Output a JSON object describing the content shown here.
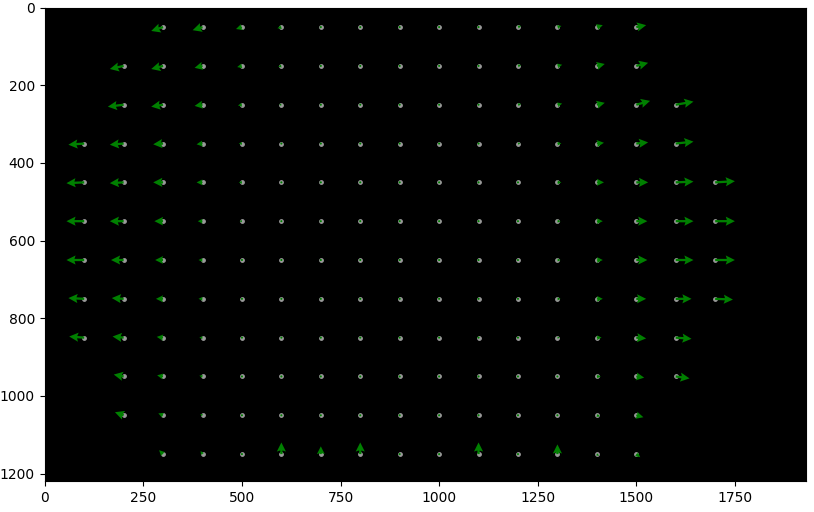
{
  "chart_data": {
    "type": "quiver",
    "color": "#008000",
    "grid": false,
    "xlim": [
      0,
      1930
    ],
    "ylim": [
      1220,
      0
    ],
    "xticks": [
      0,
      250,
      500,
      750,
      1000,
      1250,
      1500,
      1750
    ],
    "yticks": [
      0,
      200,
      400,
      600,
      800,
      1000,
      1200
    ],
    "x": [
      100,
      200,
      300,
      400,
      500,
      600,
      700,
      800,
      900,
      1000,
      1100,
      1200,
      1300,
      1400,
      1500,
      1600,
      1700
    ],
    "y": [
      50,
      150,
      250,
      350,
      450,
      550,
      650,
      750,
      850,
      950,
      1050,
      1150
    ],
    "u": [
      [
        null,
        null,
        -30,
        -25,
        -15,
        -10,
        -5,
        -3,
        0,
        3,
        5,
        8,
        10,
        15,
        25,
        null,
        null
      ],
      [
        null,
        -35,
        -30,
        -20,
        -12,
        -8,
        -5,
        -2,
        0,
        2,
        5,
        8,
        12,
        20,
        30,
        null,
        null
      ],
      [
        null,
        -40,
        -30,
        -20,
        -10,
        -6,
        -3,
        -2,
        0,
        2,
        4,
        8,
        12,
        20,
        35,
        45,
        null
      ],
      [
        -40,
        -35,
        -25,
        -15,
        -8,
        -5,
        -2,
        0,
        0,
        2,
        4,
        6,
        10,
        18,
        30,
        45,
        null
      ],
      [
        -45,
        -35,
        -25,
        -15,
        -8,
        -4,
        -2,
        0,
        0,
        2,
        3,
        5,
        10,
        18,
        30,
        45,
        50
      ],
      [
        -45,
        -35,
        -22,
        -12,
        -6,
        -3,
        -1,
        0,
        0,
        1,
        3,
        5,
        8,
        15,
        28,
        45,
        50
      ],
      [
        -45,
        -32,
        -20,
        -10,
        -5,
        -2,
        0,
        0,
        0,
        0,
        2,
        4,
        8,
        15,
        28,
        45,
        50
      ],
      [
        -40,
        -30,
        -18,
        -10,
        -5,
        -2,
        0,
        0,
        0,
        0,
        2,
        4,
        8,
        15,
        25,
        40,
        45
      ],
      [
        -38,
        -28,
        -16,
        -8,
        -4,
        -2,
        0,
        0,
        0,
        0,
        2,
        3,
        6,
        12,
        25,
        40,
        null
      ],
      [
        null,
        -25,
        -15,
        -8,
        -4,
        -2,
        0,
        0,
        0,
        0,
        0,
        2,
        5,
        10,
        20,
        35,
        null
      ],
      [
        null,
        -22,
        -12,
        -6,
        -3,
        -1,
        0,
        0,
        0,
        0,
        0,
        2,
        4,
        8,
        18,
        null,
        null
      ],
      [
        null,
        null,
        -10,
        -5,
        -2,
        0,
        0,
        0,
        0,
        0,
        0,
        2,
        0,
        5,
        10,
        null,
        null
      ]
    ],
    "v": [
      [
        null,
        null,
        10,
        8,
        5,
        3,
        2,
        0,
        0,
        0,
        -2,
        -3,
        -3,
        -5,
        -5,
        null,
        null
      ],
      [
        null,
        8,
        8,
        5,
        3,
        2,
        0,
        0,
        0,
        0,
        -2,
        -2,
        -3,
        -5,
        -8,
        null,
        null
      ],
      [
        null,
        5,
        5,
        3,
        2,
        0,
        0,
        0,
        0,
        0,
        0,
        -2,
        -3,
        -5,
        -10,
        -8,
        null
      ],
      [
        3,
        3,
        2,
        2,
        0,
        0,
        0,
        0,
        0,
        0,
        0,
        0,
        0,
        -2,
        -3,
        -5,
        null
      ],
      [
        2,
        2,
        0,
        0,
        0,
        0,
        0,
        0,
        0,
        0,
        0,
        0,
        0,
        0,
        0,
        -2,
        -3
      ],
      [
        0,
        0,
        0,
        0,
        0,
        0,
        0,
        0,
        0,
        0,
        0,
        0,
        0,
        0,
        0,
        0,
        0
      ],
      [
        0,
        0,
        0,
        0,
        0,
        0,
        0,
        0,
        0,
        0,
        0,
        0,
        0,
        0,
        0,
        0,
        0
      ],
      [
        -2,
        -2,
        0,
        0,
        0,
        0,
        0,
        0,
        0,
        0,
        0,
        0,
        0,
        0,
        0,
        0,
        2
      ],
      [
        -3,
        -3,
        -2,
        0,
        0,
        0,
        0,
        0,
        0,
        0,
        0,
        0,
        0,
        0,
        2,
        3,
        null
      ],
      [
        null,
        -5,
        -3,
        -2,
        0,
        0,
        0,
        0,
        0,
        0,
        0,
        0,
        0,
        0,
        3,
        5,
        null
      ],
      [
        null,
        -8,
        -5,
        -3,
        -2,
        0,
        -5,
        0,
        0,
        0,
        -3,
        -2,
        0,
        3,
        5,
        null,
        null
      ],
      [
        null,
        null,
        -10,
        -8,
        -5,
        -30,
        -20,
        -30,
        0,
        0,
        -30,
        0,
        -25,
        5,
        8,
        null,
        null
      ]
    ]
  }
}
